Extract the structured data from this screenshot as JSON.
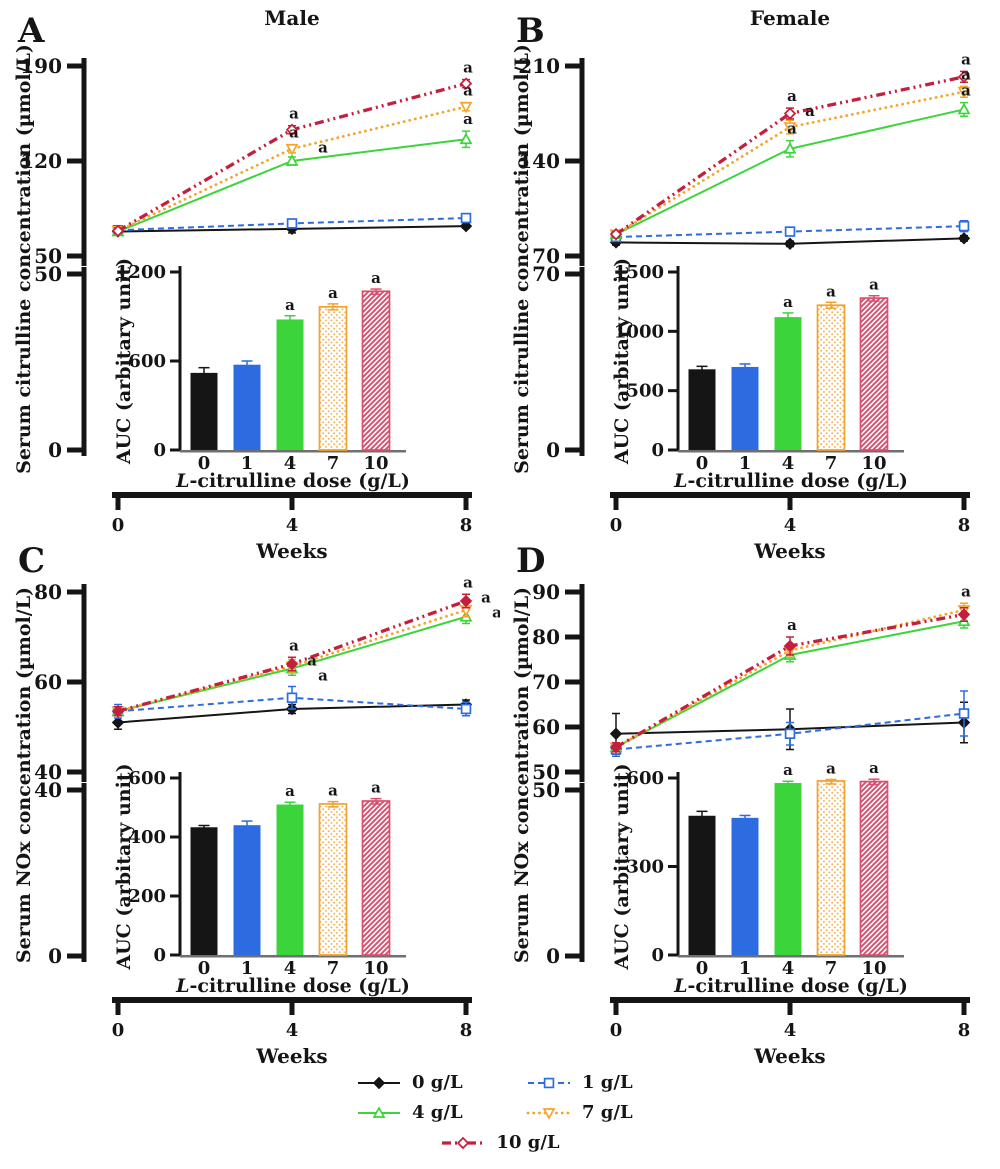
{
  "sig_label": "a",
  "styles": {
    "0 g/L": {
      "color": "#151515",
      "marker": "diamond",
      "filled": true,
      "dash": "none",
      "width": 2
    },
    "1 g/L": {
      "color": "#2d6ce0",
      "marker": "square",
      "filled": false,
      "dash": "6 4",
      "width": 2
    },
    "4 g/L": {
      "color": "#3bd53b",
      "marker": "tri-up",
      "filled": false,
      "dash": "none",
      "width": 2
    },
    "7 g/L": {
      "color": "#f5a42c",
      "marker": "tri-down",
      "filled": false,
      "dash": "0.1 5.6",
      "width": 2.8
    },
    "10 g/L": {
      "color": "#c41f3c",
      "marker": "diamond",
      "filled": false,
      "dash": "9 4 2 4 2 4",
      "width": 3.3
    }
  },
  "bar_styles": {
    "0": {
      "fill": "#151515",
      "pattern": "none"
    },
    "1": {
      "fill": "#2d6ce0",
      "pattern": "none"
    },
    "4": {
      "fill": "#3bd53b",
      "pattern": "none"
    },
    "7": {
      "fill": "#ffffff",
      "pattern": "dots",
      "stroke": "#f0a232",
      "dotcolor": "#f5b04a"
    },
    "10": {
      "fill": "#ffffff",
      "pattern": "hatch",
      "stroke": "#da4f6e",
      "hatchcolor": "#da4f6e"
    }
  },
  "legend": {
    "entries": [
      {
        "label": "0 g/L"
      },
      {
        "label": "1 g/L"
      },
      {
        "label": "4 g/L"
      },
      {
        "label": "7 g/L"
      },
      {
        "label": "10 g/L"
      }
    ]
  },
  "chart_data": [
    {
      "id": "A",
      "label": "A",
      "title": "Male",
      "row": "top",
      "line_chart": {
        "type": "line",
        "xlabel": "Weeks",
        "ylabel": "Serum citrulline concentration (µmol/L)",
        "x": [
          0,
          4,
          8
        ],
        "x_ticks": [
          0,
          4,
          8
        ],
        "upper_ticks": [
          50,
          120,
          190
        ],
        "lower_ticks": [
          50,
          0
        ],
        "series": [
          {
            "name": "0 g/L",
            "values": [
              68,
              70,
              72
            ],
            "err": [
              1.5,
              3,
              1.5
            ],
            "sig": [
              false,
              false,
              false
            ]
          },
          {
            "name": "1 g/L",
            "values": [
              69,
              74,
              78
            ],
            "err": [
              1.5,
              1.5,
              2
            ],
            "sig": [
              false,
              false,
              false
            ]
          },
          {
            "name": "4 g/L",
            "values": [
              68,
              120,
              136
            ],
            "err": [
              2,
              3,
              6
            ],
            "sig": [
              false,
              true,
              true
            ]
          },
          {
            "name": "7 g/L",
            "values": [
              68.5,
              129,
              160
            ],
            "err": [
              2,
              3,
              3
            ],
            "sig": [
              false,
              true,
              true
            ]
          },
          {
            "name": "10 g/L",
            "values": [
              68.5,
              143,
              177
            ],
            "err": [
              2,
              3,
              3
            ],
            "sig": [
              false,
              true,
              true
            ]
          }
        ]
      },
      "inset_bar": {
        "type": "bar",
        "ylabel": "AUC (arbitary unit)",
        "xlabel": "L-citrulline dose (g/L)",
        "categories": [
          "0",
          "1",
          "4",
          "7",
          "10"
        ],
        "values": [
          520,
          575,
          880,
          965,
          1070
        ],
        "err": [
          35,
          25,
          25,
          20,
          15
        ],
        "sig": [
          false,
          false,
          true,
          true,
          true
        ],
        "yticks": [
          0,
          600,
          1200
        ],
        "ylim": [
          0,
          1200
        ]
      }
    },
    {
      "id": "B",
      "label": "B",
      "title": "Female",
      "row": "top",
      "line_chart": {
        "type": "line",
        "xlabel": "Weeks",
        "ylabel": "Serum citrulline concentration (µmol/L)",
        "x": [
          0,
          4,
          8
        ],
        "x_ticks": [
          0,
          4,
          8
        ],
        "upper_ticks": [
          70,
          140,
          210
        ],
        "lower_ticks": [
          70,
          0
        ],
        "series": [
          {
            "name": "0 g/L",
            "values": [
              80,
              79,
              83
            ],
            "err": [
              2,
              2,
              2
            ],
            "sig": [
              false,
              false,
              false
            ]
          },
          {
            "name": "1 g/L",
            "values": [
              84,
              88,
              92
            ],
            "err": [
              2,
              3,
              4
            ],
            "sig": [
              false,
              false,
              false
            ]
          },
          {
            "name": "4 g/L",
            "values": [
              86,
              149,
              178
            ],
            "err": [
              2,
              6,
              5
            ],
            "sig": [
              false,
              true,
              true
            ]
          },
          {
            "name": "7 g/L",
            "values": [
              86,
              165,
              191
            ],
            "err": [
              2,
              5,
              4
            ],
            "sig": [
              false,
              true,
              true
            ]
          },
          {
            "name": "10 g/L",
            "values": [
              86,
              175,
              202
            ],
            "err": [
              2,
              4,
              4
            ],
            "sig": [
              false,
              true,
              true
            ]
          }
        ]
      },
      "inset_bar": {
        "type": "bar",
        "ylabel": "AUC (arbitary unit)",
        "xlabel": "L-citrulline dose (g/L)",
        "categories": [
          "0",
          "1",
          "4",
          "7",
          "10"
        ],
        "values": [
          680,
          700,
          1120,
          1220,
          1280
        ],
        "err": [
          25,
          25,
          35,
          25,
          20
        ],
        "sig": [
          false,
          false,
          true,
          true,
          true
        ],
        "yticks": [
          0,
          500,
          1000,
          1500
        ],
        "ylim": [
          0,
          1500
        ]
      }
    },
    {
      "id": "C",
      "label": "C",
      "title": "",
      "row": "bottom",
      "line_chart": {
        "type": "line",
        "xlabel": "Weeks",
        "ylabel": "Serum NOx concentration (µmol/L)",
        "x": [
          0,
          4,
          8
        ],
        "x_ticks": [
          0,
          4,
          8
        ],
        "upper_ticks": [
          40,
          60,
          80
        ],
        "lower_ticks": [
          40,
          0
        ],
        "series": [
          {
            "name": "0 g/L",
            "values": [
              51,
              54,
              55
            ],
            "err": [
              1.5,
              1,
              1
            ],
            "sig": [
              false,
              false,
              false
            ]
          },
          {
            "name": "1 g/L",
            "values": [
              53.5,
              56.5,
              54
            ],
            "err": [
              1.5,
              2.5,
              1.5
            ],
            "sig": [
              false,
              false,
              false
            ]
          },
          {
            "name": "4 g/L",
            "values": [
              53.5,
              63,
              74.5
            ],
            "err": [
              1,
              1.5,
              1.5
            ],
            "sig": [
              false,
              true,
              true
            ]
          },
          {
            "name": "7 g/L",
            "values": [
              53.5,
              63.5,
              76
            ],
            "err": [
              1,
              1.5,
              1.5
            ],
            "sig": [
              false,
              true,
              true
            ]
          },
          {
            "name": "10 g/L",
            "values": [
              53.5,
              64,
              78
            ],
            "err": [
              1,
              1.5,
              1.5
            ],
            "sig": [
              false,
              true,
              true
            ],
            "marker_filled": true
          }
        ]
      },
      "inset_bar": {
        "type": "bar",
        "ylabel": "AUC (arbitary unit)",
        "xlabel": "L-citrulline dose (g/L)",
        "categories": [
          "0",
          "1",
          "4",
          "7",
          "10"
        ],
        "values": [
          433,
          440,
          510,
          512,
          522
        ],
        "err": [
          6,
          14,
          8,
          8,
          8
        ],
        "sig": [
          false,
          false,
          true,
          true,
          true
        ],
        "yticks": [
          0,
          200,
          400,
          600
        ],
        "ylim": [
          0,
          600
        ]
      }
    },
    {
      "id": "D",
      "label": "D",
      "title": "",
      "row": "bottom",
      "line_chart": {
        "type": "line",
        "xlabel": "Weeks",
        "ylabel": "Serum NOx concentration (µmol/L)",
        "x": [
          0,
          4,
          8
        ],
        "x_ticks": [
          0,
          4,
          8
        ],
        "upper_ticks": [
          50,
          60,
          70,
          80,
          90
        ],
        "lower_ticks": [
          50,
          0
        ],
        "series": [
          {
            "name": "0 g/L",
            "values": [
              58.5,
              59.5,
              61
            ],
            "err": [
              4.5,
              4.5,
              4.5
            ],
            "sig": [
              false,
              false,
              false
            ]
          },
          {
            "name": "1 g/L",
            "values": [
              55,
              58.5,
              63
            ],
            "err": [
              1.5,
              2.5,
              5
            ],
            "sig": [
              false,
              false,
              false
            ]
          },
          {
            "name": "4 g/L",
            "values": [
              55.5,
              76,
              83.5
            ],
            "err": [
              1,
              1.5,
              1.5
            ],
            "sig": [
              false,
              false,
              false
            ]
          },
          {
            "name": "7 g/L",
            "values": [
              55.5,
              77,
              86
            ],
            "err": [
              1,
              1.5,
              1.5
            ],
            "sig": [
              false,
              false,
              true
            ]
          },
          {
            "name": "10 g/L",
            "values": [
              55.5,
              78,
              85
            ],
            "err": [
              1,
              2,
              1.5
            ],
            "sig": [
              false,
              true,
              false
            ],
            "marker_filled": true
          }
        ]
      },
      "inset_bar": {
        "type": "bar",
        "ylabel": "AUC (arbitary unit)",
        "xlabel": "L-citrulline dose (g/L)",
        "categories": [
          "0",
          "1",
          "4",
          "7",
          "10"
        ],
        "values": [
          472,
          465,
          583,
          590,
          588
        ],
        "err": [
          15,
          8,
          6,
          5,
          8
        ],
        "sig": [
          false,
          false,
          true,
          true,
          true
        ],
        "yticks": [
          0,
          300,
          600
        ],
        "ylim": [
          0,
          600
        ]
      }
    }
  ]
}
